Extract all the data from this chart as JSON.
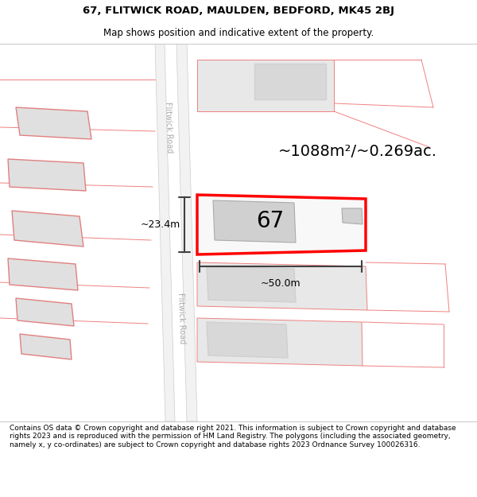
{
  "title_line1": "67, FLITWICK ROAD, MAULDEN, BEDFORD, MK45 2BJ",
  "title_line2": "Map shows position and indicative extent of the property.",
  "footer_text": "Contains OS data © Crown copyright and database right 2021. This information is subject to Crown copyright and database rights 2023 and is reproduced with the permission of HM Land Registry. The polygons (including the associated geometry, namely x, y co-ordinates) are subject to Crown copyright and database rights 2023 Ordnance Survey 100026316.",
  "area_label": "~1088m²/~0.269ac.",
  "number_label": "67",
  "width_label": "~50.0m",
  "height_label": "~23.4m",
  "road_label": "Flitwick Road",
  "bg_color": "#ffffff",
  "map_bg": "#ffffff",
  "road_color": "#f0f0f0",
  "road_border": "#e0e0e0",
  "plot_red": "#ff0000",
  "building_fill": "#d8d8d8",
  "neighbor_line": "#f08080",
  "dim_line_color": "#404040",
  "road_fill": "#f5f5f5"
}
